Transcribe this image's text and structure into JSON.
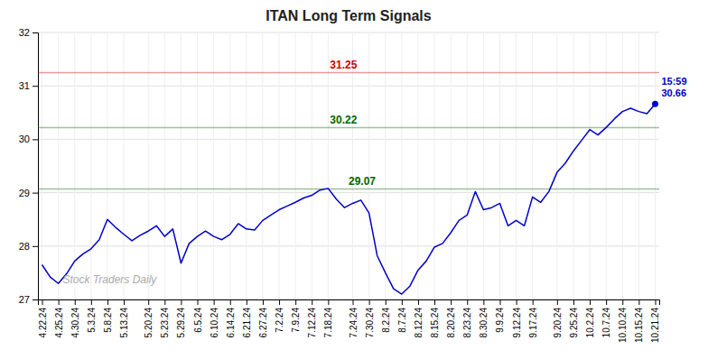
{
  "chart_data": {
    "type": "line",
    "title": "ITAN Long Term Signals",
    "color": "#0000cc",
    "categories": [
      "4.22.24",
      null,
      "4.25.24",
      null,
      "4.30.24",
      null,
      "5.3.24",
      null,
      "5.8.24",
      null,
      "5.13.24",
      null,
      null,
      "5.20.24",
      null,
      "5.23.24",
      null,
      "5.29.24",
      null,
      "6.5.24",
      null,
      "6.10.24",
      null,
      "6.14.24",
      null,
      "6.21.24",
      null,
      "6.27.24",
      null,
      "7.2.24",
      null,
      "7.9.24",
      null,
      "7.12.24",
      null,
      "7.18.24",
      null,
      null,
      "7.24.24",
      null,
      "7.30.24",
      null,
      "8.2.24",
      null,
      "8.7.24",
      null,
      "8.12.24",
      null,
      "8.15.24",
      null,
      "8.20.24",
      null,
      "8.23.24",
      null,
      "8.30.24",
      null,
      "9.9.24",
      null,
      "9.12.24",
      null,
      "9.17.24",
      null,
      null,
      "9.20.24",
      null,
      "9.25.24",
      null,
      "10.2.24",
      null,
      "10.7.24",
      null,
      "10.10.24",
      null,
      "10.15.24",
      null,
      "10.21.24"
    ],
    "values": [
      27.65,
      27.42,
      27.3,
      27.48,
      27.72,
      27.85,
      27.95,
      28.12,
      28.5,
      28.35,
      28.22,
      28.1,
      28.2,
      28.28,
      28.38,
      28.18,
      28.32,
      27.68,
      28.05,
      28.18,
      28.28,
      28.18,
      28.12,
      28.22,
      28.42,
      28.32,
      28.3,
      28.48,
      28.58,
      28.68,
      28.75,
      28.82,
      28.9,
      28.95,
      29.05,
      29.08,
      28.88,
      28.72,
      28.8,
      28.86,
      28.62,
      27.82,
      27.5,
      27.2,
      27.1,
      27.25,
      27.55,
      27.72,
      27.98,
      28.05,
      28.25,
      28.48,
      28.58,
      29.02,
      28.68,
      28.72,
      28.8,
      28.38,
      28.48,
      28.38,
      28.92,
      28.82,
      29.02,
      29.38,
      29.55,
      29.78,
      29.98,
      30.18,
      30.08,
      30.22,
      30.38,
      30.52,
      30.58,
      30.52,
      30.48,
      30.66
    ],
    "ylim": [
      27,
      32
    ],
    "yticks": [
      27,
      28,
      29,
      30,
      31,
      32
    ],
    "grid": true,
    "annotations": [
      {
        "type": "hline",
        "text": "31.25",
        "y": 31.25,
        "color": "#cc0000"
      },
      {
        "type": "hline",
        "text": "30.22",
        "y": 30.22,
        "color": "#006600"
      },
      {
        "type": "hline",
        "text": "29.07",
        "y": 29.07,
        "color": "#006600"
      },
      {
        "type": "point_label",
        "text": "15:59"
      },
      {
        "type": "point_label",
        "text": "30.66",
        "y": 30.66
      },
      {
        "type": "watermark",
        "text": "Stock Traders Daily"
      }
    ]
  }
}
